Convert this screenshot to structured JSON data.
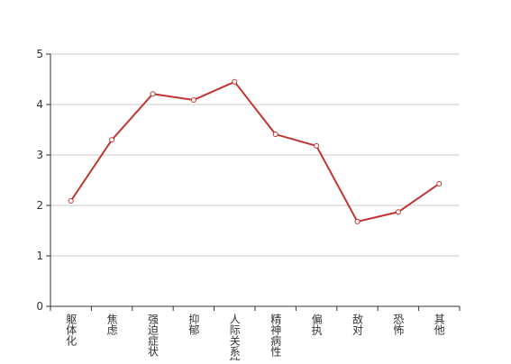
{
  "chart_data": {
    "type": "line",
    "categories": [
      "躯体化",
      "焦虑",
      "强迫症状",
      "抑郁",
      "人际关系敏感",
      "精神病性",
      "偏执",
      "敌对",
      "恐怖",
      "其他"
    ],
    "series": [
      {
        "color": "#c23531",
        "values": [
          2.09,
          3.3,
          4.21,
          4.09,
          4.45,
          3.41,
          3.18,
          1.68,
          1.87,
          2.43
        ]
      }
    ],
    "ylim": [
      0,
      5
    ],
    "yticks": [
      0,
      1,
      2,
      3,
      4,
      5
    ],
    "grid": true
  }
}
